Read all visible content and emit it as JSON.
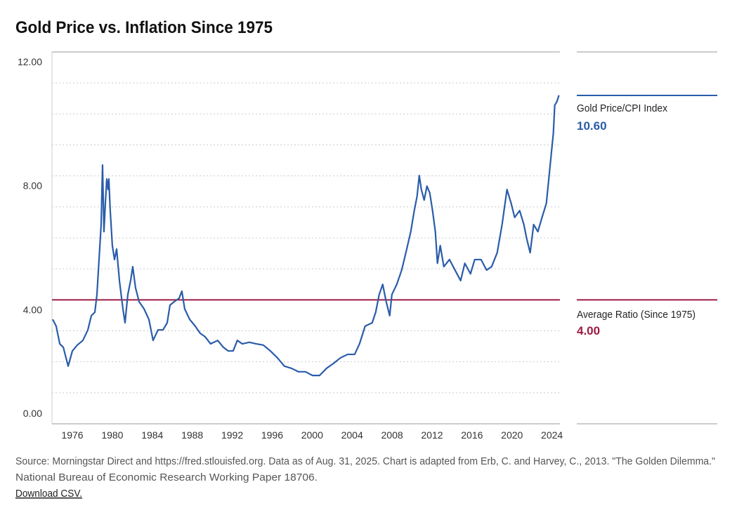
{
  "chart_data": {
    "type": "line",
    "title": "Gold Price vs. Inflation Since 1975",
    "xlim": [
      1973.96,
      2024.8
    ],
    "xticks": [
      1976,
      1980,
      1984,
      1988,
      1992,
      1996,
      2000,
      2004,
      2008,
      2012,
      2016,
      2020,
      2024
    ],
    "ylim": [
      0,
      12
    ],
    "yticks": [
      {
        "value": 0,
        "label": "0.00"
      },
      {
        "value": 4,
        "label": "4.00"
      },
      {
        "value": 8,
        "label": "8.00"
      },
      {
        "value": 12,
        "label": "12.00"
      }
    ],
    "minor_yticks": [
      1,
      2,
      3,
      5,
      6,
      7,
      9,
      10,
      11
    ],
    "grid": true,
    "series": [
      {
        "name": "Gold Price/CPI Index",
        "color": "#2a5caa",
        "current": {
          "value": 10.6,
          "label": "10.60"
        },
        "x": [
          1974.03,
          1974.38,
          1974.74,
          1975.09,
          1975.58,
          1976.0,
          1976.49,
          1977.05,
          1977.55,
          1977.9,
          1978.25,
          1978.46,
          1978.67,
          1978.88,
          1979.02,
          1979.16,
          1979.3,
          1979.44,
          1979.58,
          1979.65,
          1979.79,
          1980.0,
          1980.22,
          1980.43,
          1980.71,
          1981.06,
          1981.27,
          1981.55,
          1981.83,
          1982.04,
          1982.32,
          1982.68,
          1983.17,
          1983.66,
          1984.08,
          1984.57,
          1985.07,
          1985.49,
          1985.77,
          1986.19,
          1986.68,
          1986.96,
          1987.24,
          1987.74,
          1988.3,
          1988.79,
          1989.28,
          1989.84,
          1990.55,
          1991.11,
          1991.6,
          1992.09,
          1992.51,
          1993.01,
          1993.71,
          1994.41,
          1995.11,
          1995.82,
          1996.52,
          1997.22,
          1997.93,
          1998.63,
          1999.33,
          2000.03,
          2000.74,
          2001.44,
          2002.14,
          2002.84,
          2003.55,
          2004.25,
          2004.74,
          2005.3,
          2006.01,
          2006.36,
          2006.71,
          2007.06,
          2007.41,
          2007.76,
          2007.98,
          2008.47,
          2008.96,
          2009.38,
          2009.87,
          2010.22,
          2010.5,
          2010.72,
          2010.93,
          2011.21,
          2011.49,
          2011.77,
          2012.05,
          2012.33,
          2012.54,
          2012.82,
          2013.18,
          2013.74,
          2014.3,
          2014.86,
          2015.28,
          2015.85,
          2016.27,
          2016.9,
          2017.46,
          2017.96,
          2018.52,
          2019.01,
          2019.5,
          2019.92,
          2020.27,
          2020.77,
          2021.19,
          2021.47,
          2021.82,
          2022.17,
          2022.59,
          2023.01,
          2023.44,
          2023.72,
          2024.0,
          2024.14,
          2024.28,
          2024.49,
          2024.7
        ],
        "values": [
          3.37,
          3.15,
          2.58,
          2.47,
          1.86,
          2.35,
          2.54,
          2.69,
          3.03,
          3.49,
          3.6,
          4.17,
          5.3,
          6.43,
          8.35,
          6.2,
          7.1,
          7.9,
          7.56,
          7.9,
          6.88,
          5.75,
          5.3,
          5.64,
          4.62,
          3.71,
          3.26,
          4.17,
          4.62,
          5.07,
          4.39,
          3.94,
          3.71,
          3.37,
          2.69,
          3.03,
          3.03,
          3.26,
          3.83,
          3.94,
          4.05,
          4.28,
          3.71,
          3.37,
          3.15,
          2.92,
          2.81,
          2.58,
          2.69,
          2.47,
          2.35,
          2.35,
          2.69,
          2.58,
          2.63,
          2.58,
          2.54,
          2.35,
          2.13,
          1.86,
          1.79,
          1.68,
          1.68,
          1.56,
          1.56,
          1.79,
          1.95,
          2.13,
          2.24,
          2.24,
          2.58,
          3.15,
          3.26,
          3.6,
          4.17,
          4.5,
          3.94,
          3.49,
          4.17,
          4.5,
          4.96,
          5.52,
          6.2,
          6.88,
          7.34,
          8.01,
          7.56,
          7.22,
          7.67,
          7.45,
          6.88,
          6.2,
          5.18,
          5.75,
          5.07,
          5.3,
          4.96,
          4.62,
          5.18,
          4.84,
          5.3,
          5.3,
          4.96,
          5.07,
          5.52,
          6.43,
          7.56,
          7.11,
          6.66,
          6.88,
          6.43,
          5.98,
          5.52,
          6.43,
          6.2,
          6.66,
          7.11,
          8.01,
          8.92,
          9.37,
          10.28,
          10.39,
          10.6
        ]
      }
    ],
    "reference_line": {
      "name": "Average Ratio (Since 1975)",
      "value": 4,
      "label": "4.00",
      "color": "#9e1b42"
    },
    "source": [
      "Source: Morningstar Direct and https://fred.stlouisfed.org. Data as of Aug. 31, 2025. Chart is adapted from Erb, C. and Harvey, C., 2013. \"The Golden Dilemma.\"",
      "National Bureau of Economic Research Working Paper 18706."
    ],
    "link": "Download CSV."
  }
}
